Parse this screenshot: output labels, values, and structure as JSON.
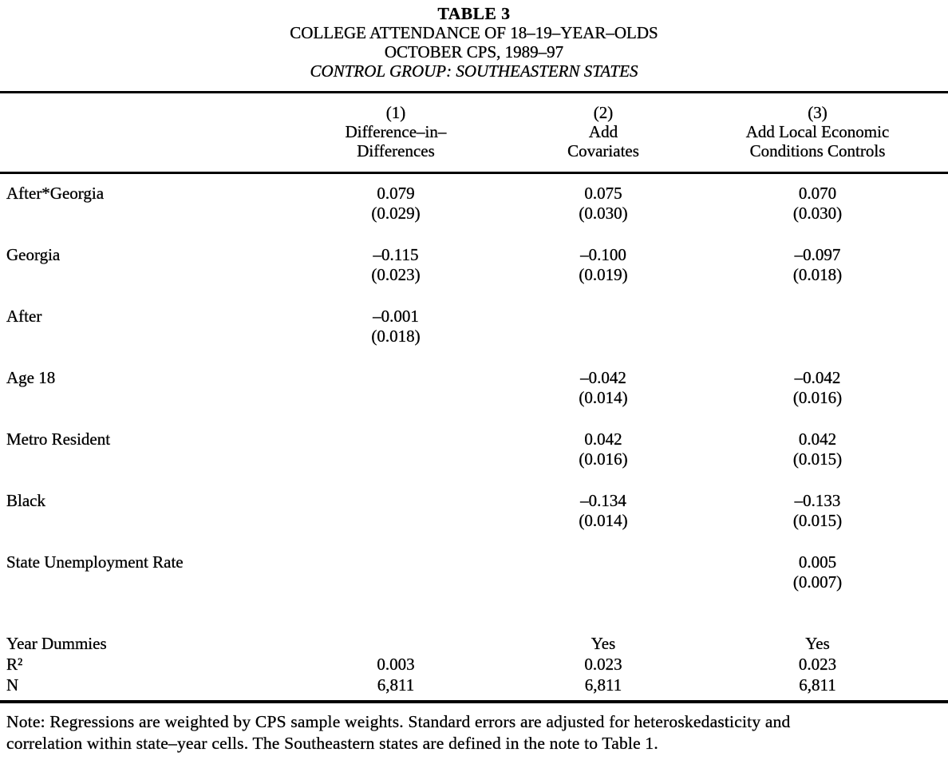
{
  "colors": {
    "ink": "#000000",
    "paper": "#ffffff"
  },
  "title_block": {
    "table_number": "TABLE 3",
    "title": "COLLEGE ATTENDANCE OF 18–19–YEAR–OLDS",
    "subtitle": "OCTOBER CPS, 1989–97",
    "control_group": "CONTROL GROUP: SOUTHEASTERN STATES"
  },
  "table": {
    "column_headers": [
      {
        "number": "(1)",
        "line1": "Difference–in–",
        "line2": "Differences"
      },
      {
        "number": "(2)",
        "line1": "Add",
        "line2": "Covariates"
      },
      {
        "number": "(3)",
        "line1": "Add Local Economic",
        "line2": "Conditions Controls"
      }
    ],
    "coefficient_rows": [
      {
        "label": "After*Georgia",
        "estimates": [
          "0.079",
          "0.075",
          "0.070"
        ],
        "std_errors": [
          "(0.029)",
          "(0.030)",
          "(0.030)"
        ]
      },
      {
        "label": "Georgia",
        "estimates": [
          "–0.115",
          "–0.100",
          "–0.097"
        ],
        "std_errors": [
          "(0.023)",
          "(0.019)",
          "(0.018)"
        ]
      },
      {
        "label": "After",
        "estimates": [
          "–0.001",
          "",
          ""
        ],
        "std_errors": [
          "(0.018)",
          "",
          ""
        ]
      },
      {
        "label": "Age 18",
        "estimates": [
          "",
          "–0.042",
          "–0.042"
        ],
        "std_errors": [
          "",
          "(0.014)",
          "(0.016)"
        ]
      },
      {
        "label": "Metro Resident",
        "estimates": [
          "",
          "0.042",
          "0.042"
        ],
        "std_errors": [
          "",
          "(0.016)",
          "(0.015)"
        ]
      },
      {
        "label": "Black",
        "estimates": [
          "",
          "–0.134",
          "–0.133"
        ],
        "std_errors": [
          "",
          "(0.014)",
          "(0.015)"
        ]
      },
      {
        "label": "State Unemployment Rate",
        "estimates": [
          "",
          "",
          "0.005"
        ],
        "std_errors": [
          "",
          "",
          "(0.007)"
        ]
      }
    ],
    "summary_rows": [
      {
        "label": "Year Dummies",
        "values": [
          "",
          "Yes",
          "Yes"
        ]
      },
      {
        "label": "R²",
        "values": [
          "0.003",
          "0.023",
          "0.023"
        ]
      },
      {
        "label": "N",
        "values": [
          "6,811",
          "6,811",
          "6,811"
        ]
      }
    ]
  },
  "note": {
    "line1": "Note: Regressions are weighted by CPS sample weights. Standard errors are adjusted for heteroskedasticity and",
    "line2": "correlation within state–year cells. The Southeastern states are defined in the note to Table 1."
  }
}
